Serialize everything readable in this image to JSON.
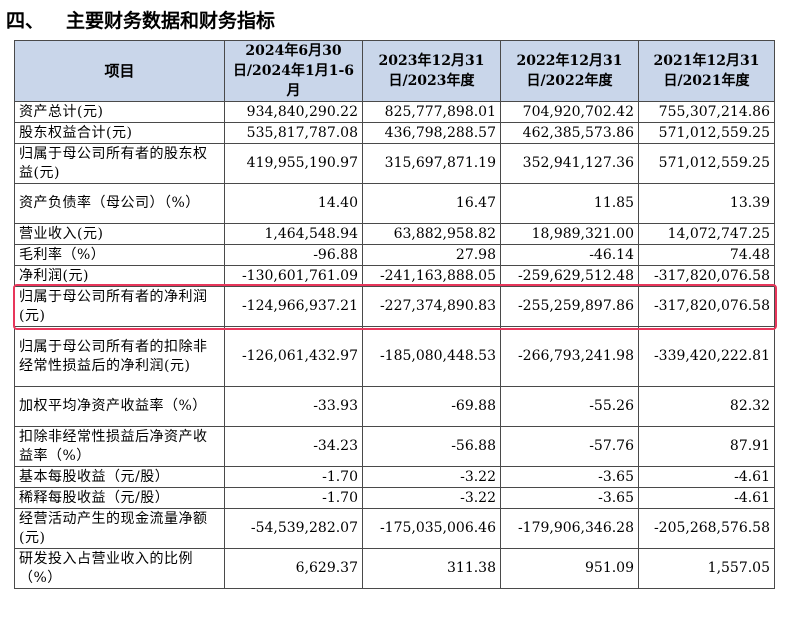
{
  "heading": {
    "number": "四、",
    "title": "主要财务数据和财务指标"
  },
  "table": {
    "columns": [
      "项目",
      "2024年6月30日/2024年1月1-6月",
      "2023年12月31日/2023年度",
      "2022年12月31日/2022年度",
      "2021年12月31日/2021年度"
    ],
    "rows": [
      {
        "label": "资产总计(元)",
        "values": [
          "934,840,290.22",
          "825,777,898.01",
          "704,920,702.42",
          "755,307,214.86"
        ]
      },
      {
        "label": "股东权益合计(元)",
        "values": [
          "535,817,787.08",
          "436,798,288.57",
          "462,385,573.86",
          "571,012,559.25"
        ]
      },
      {
        "label": "归属于母公司所有者的股东权益(元)",
        "values": [
          "419,955,190.97",
          "315,697,871.19",
          "352,941,127.36",
          "571,012,559.25"
        ]
      },
      {
        "label": "资产负债率（母公司）（%）",
        "values": [
          "14.40",
          "16.47",
          "11.85",
          "13.39"
        ]
      },
      {
        "label": "营业收入(元)",
        "values": [
          "1,464,548.94",
          "63,882,958.82",
          "18,989,321.00",
          "14,072,747.25"
        ]
      },
      {
        "label": "毛利率（%）",
        "values": [
          "-96.88",
          "27.98",
          "-46.14",
          "74.48"
        ]
      },
      {
        "label": "净利润(元)",
        "values": [
          "-130,601,761.09",
          "-241,163,888.05",
          "-259,629,512.48",
          "-317,820,076.58"
        ]
      },
      {
        "label": "归属于母公司所有者的净利润(元)",
        "values": [
          "-124,966,937.21",
          "-227,374,890.83",
          "-255,259,897.86",
          "-317,820,076.58"
        ]
      },
      {
        "label": "归属于母公司所有者的扣除非经常性损益后的净利润(元)",
        "values": [
          "-126,061,432.97",
          "-185,080,448.53",
          "-266,793,241.98",
          "-339,420,222.81"
        ]
      },
      {
        "label": "加权平均净资产收益率（%）",
        "values": [
          "-33.93",
          "-69.88",
          "-55.26",
          "82.32"
        ]
      },
      {
        "label": "扣除非经常性损益后净资产收益率（%）",
        "values": [
          "-34.23",
          "-56.88",
          "-57.76",
          "87.91"
        ]
      },
      {
        "label": "基本每股收益（元/股）",
        "values": [
          "-1.70",
          "-3.22",
          "-3.65",
          "-4.61"
        ]
      },
      {
        "label": "稀释每股收益（元/股）",
        "values": [
          "-1.70",
          "-3.22",
          "-3.65",
          "-4.61"
        ]
      },
      {
        "label": "经营活动产生的现金流量净额(元)",
        "values": [
          "-54,539,282.07",
          "-175,035,006.46",
          "-179,906,346.28",
          "-205,268,576.58"
        ]
      },
      {
        "label": "研发投入占营业收入的比例（%）",
        "values": [
          "6,629.37",
          "311.38",
          "951.09",
          "1,557.05"
        ]
      }
    ]
  },
  "colors": {
    "header_background": "#c9d6ea",
    "highlight_border": "#e8365b",
    "grid": "#4a4a4a"
  }
}
